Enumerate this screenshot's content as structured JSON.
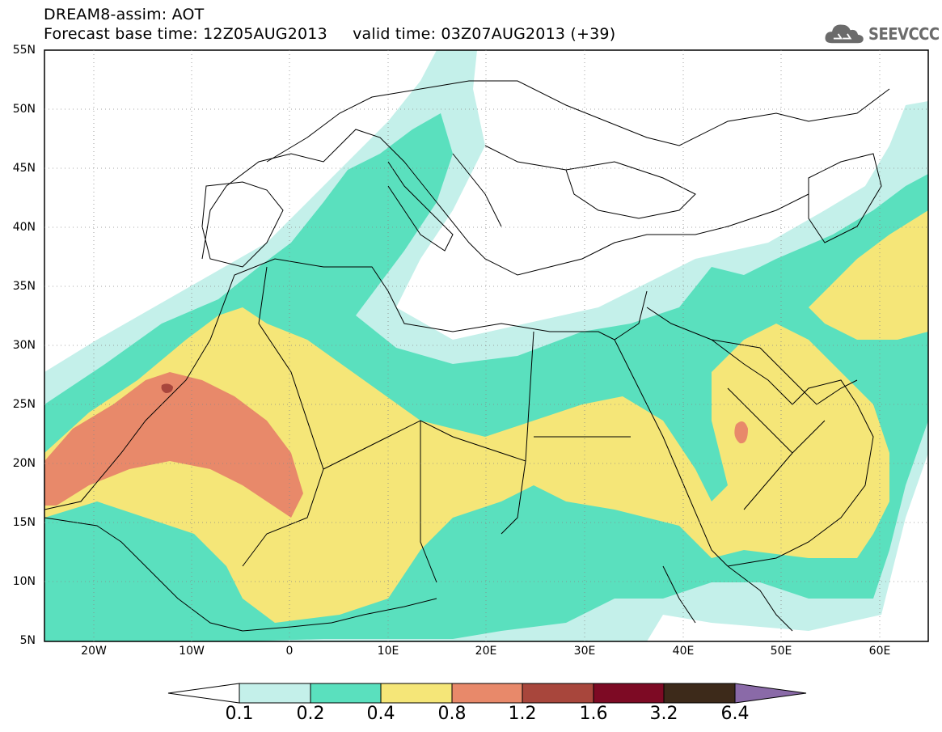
{
  "header": {
    "title": "DREAM8-assim: AOT",
    "base_time": "Forecast base time: 12Z05AUG2013",
    "valid_time": "valid time: 03Z07AUG2013 (+39)",
    "logo_text": "SEEVCCC"
  },
  "axes": {
    "lat_labels": [
      "55N",
      "50N",
      "45N",
      "40N",
      "35N",
      "30N",
      "25N",
      "20N",
      "15N",
      "10N",
      "5N"
    ],
    "lon_labels": [
      "20W",
      "10W",
      "0",
      "10E",
      "20E",
      "30E",
      "40E",
      "50E",
      "60E"
    ]
  },
  "colorbar": {
    "labels": [
      "0.1",
      "0.2",
      "0.4",
      "0.8",
      "1.2",
      "1.6",
      "3.2",
      "6.4"
    ],
    "colors": [
      "#ffffff",
      "#c4f0ea",
      "#5ae0be",
      "#f5e678",
      "#e8896a",
      "#a8463c",
      "#7d0a24",
      "#3d2a1a",
      "#8a6aa8"
    ]
  },
  "map": {
    "region": "North Africa, Mediterranean, Middle East",
    "variable": "Aerosol optical thickness"
  }
}
